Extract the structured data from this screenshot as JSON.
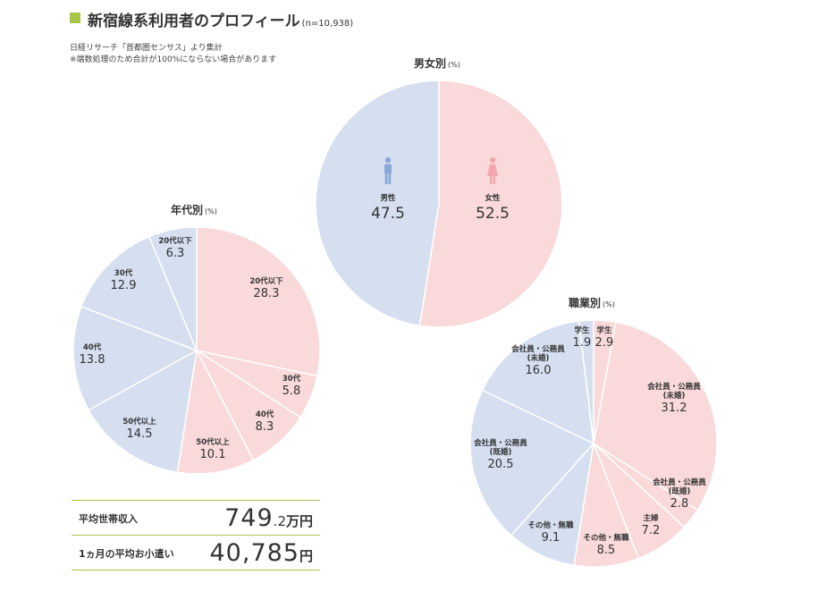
{
  "header": {
    "title": "新宿線系利用者のプロフィール",
    "sample": "(n=10,938)",
    "accent_color": "#a8c545"
  },
  "notes": [
    "日経リサーチ「首都圏センサス」より集計",
    "※端数処理のため合計が100%にならない場合があります"
  ],
  "colors": {
    "female": "#f9d9d9",
    "male": "#d5dff0",
    "edge": "#ffffff"
  },
  "chart_data": [
    {
      "type": "pie",
      "title": "男女別",
      "unit": "(%)",
      "start_angle_deg": 0,
      "direction": "clockwise",
      "slices": [
        {
          "name": "女性",
          "value": 52.5,
          "value_label": "52.5",
          "group": "female"
        },
        {
          "name": "男性",
          "value": 47.5,
          "value_label": "47.5",
          "group": "male"
        }
      ]
    },
    {
      "type": "pie",
      "title": "年代別",
      "unit": "(%)",
      "start_angle_deg": 0,
      "direction": "clockwise",
      "slices": [
        {
          "name": "20代以下",
          "value": 28.3,
          "value_label": "28.3",
          "group": "female"
        },
        {
          "name": "30代",
          "value": 5.8,
          "value_label": "5.8",
          "group": "female"
        },
        {
          "name": "40代",
          "value": 8.3,
          "value_label": "8.3",
          "group": "female"
        },
        {
          "name": "50代以上",
          "value": 10.1,
          "value_label": "10.1",
          "group": "female"
        },
        {
          "name": "50代以上",
          "value": 14.5,
          "value_label": "14.5",
          "group": "male"
        },
        {
          "name": "40代",
          "value": 13.8,
          "value_label": "13.8",
          "group": "male"
        },
        {
          "name": "30代",
          "value": 12.9,
          "value_label": "12.9",
          "group": "male"
        },
        {
          "name": "20代以下",
          "value": 6.3,
          "value_label": "6.3",
          "group": "male"
        }
      ]
    },
    {
      "type": "pie",
      "title": "職業別",
      "unit": "(%)",
      "start_angle_deg": 0,
      "direction": "clockwise",
      "slices": [
        {
          "name": "学生",
          "value": 2.9,
          "value_label": "2.9",
          "group": "female"
        },
        {
          "name": "会社員・公務員\n(未婚)",
          "value": 31.2,
          "value_label": "31.2",
          "group": "female"
        },
        {
          "name": "会社員・公務員\n(既婚)",
          "value": 2.8,
          "value_label": "2.8",
          "group": "female"
        },
        {
          "name": "主婦",
          "value": 7.2,
          "value_label": "7.2",
          "group": "female"
        },
        {
          "name": "その他・無職",
          "value": 8.5,
          "value_label": "8.5",
          "group": "female"
        },
        {
          "name": "その他・無職",
          "value": 9.1,
          "value_label": "9.1",
          "group": "male"
        },
        {
          "name": "会社員・公務員\n(既婚)",
          "value": 20.5,
          "value_label": "20.5",
          "group": "male"
        },
        {
          "name": "会社員・公務員\n(未婚)",
          "value": 16.0,
          "value_label": "16.0",
          "group": "male"
        },
        {
          "name": "学生",
          "value": 1.9,
          "value_label": "1.9",
          "group": "male"
        }
      ]
    }
  ],
  "stats": [
    {
      "label": "平均世帯収入",
      "value_main": "749",
      "value_small": ".2",
      "unit": "万円"
    },
    {
      "label": "1ヵ月の平均お小遣い",
      "value_main": "40,785",
      "value_small": "",
      "unit": "円"
    }
  ]
}
